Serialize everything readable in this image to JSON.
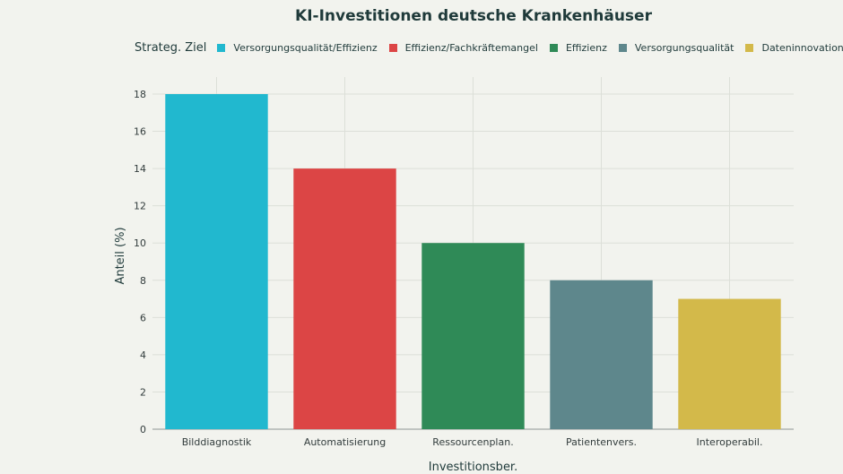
{
  "chart_data": {
    "type": "bar",
    "title": "KI-Investitionen deutsche Krankenhäuser",
    "xlabel": "Investitionsber.",
    "ylabel": "Anteil (%)",
    "ylim": [
      0,
      18
    ],
    "yticks": [
      0,
      2,
      4,
      6,
      8,
      10,
      12,
      14,
      16,
      18
    ],
    "grid": true,
    "legend_title": "Strateg. Ziel",
    "legend_placement": "top",
    "legend": [
      {
        "name": "Versorgungsqualität/Effizienz",
        "color": "#21b8cf"
      },
      {
        "name": "Effizienz/Fachkräftemangel",
        "color": "#dc4545"
      },
      {
        "name": "Effizienz",
        "color": "#2f8a57"
      },
      {
        "name": "Versorgungsqualität",
        "color": "#5e878c"
      },
      {
        "name": "Dateninnovation",
        "color": "#d3b94a"
      }
    ],
    "categories": [
      "Bilddiagnostik",
      "Automatisierung",
      "Ressourcenplan.",
      "Patientenvers.",
      "Interoperabil."
    ],
    "values": [
      18,
      14,
      10,
      8,
      7
    ],
    "colors": [
      "#21b8cf",
      "#dc4545",
      "#2f8a57",
      "#5e878c",
      "#d3b94a"
    ]
  }
}
